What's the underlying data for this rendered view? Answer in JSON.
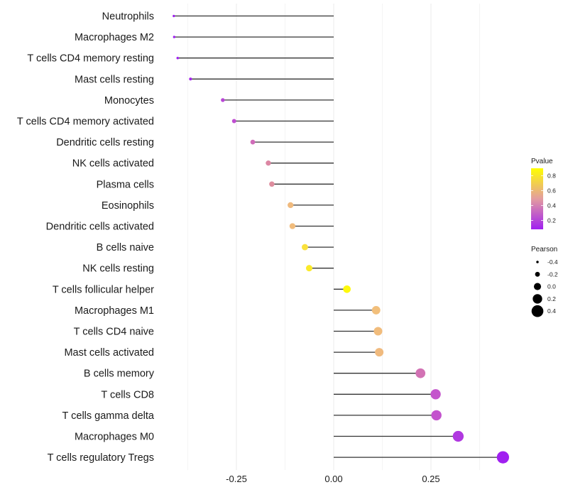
{
  "chart_data": {
    "type": "lollipop",
    "title": "",
    "xlabel": "",
    "ylabel": "",
    "xlim": [
      -0.49,
      0.455
    ],
    "x_major_ticks": [
      -0.25,
      0.0,
      0.25
    ],
    "x_tick_labels": [
      "-0.25",
      "0.00",
      "0.25"
    ],
    "x_minor_gridlines": [
      -0.375,
      -0.125,
      0.125,
      0.375
    ],
    "grid": true,
    "baseline": 0,
    "categories": [
      "Neutrophils",
      "Macrophages M2",
      "T cells CD4 memory resting",
      "Mast cells resting",
      "Monocytes",
      "T cells CD4 memory activated",
      "Dendritic cells resting",
      "NK cells activated",
      "Plasma cells",
      "Eosinophils",
      "Dendritic cells activated",
      "B cells naive",
      "NK cells resting",
      "T cells follicular helper",
      "Macrophages M1",
      "T cells CD4 naive",
      "Mast cells activated",
      "B cells memory",
      "T cells CD8",
      "T cells gamma delta",
      "Macrophages M0",
      "T cells regulatory  Tregs"
    ],
    "series": [
      {
        "name": "Pearson",
        "values": [
          -0.411,
          -0.41,
          -0.401,
          -0.368,
          -0.285,
          -0.256,
          -0.208,
          -0.168,
          -0.159,
          -0.111,
          -0.106,
          -0.074,
          -0.063,
          0.034,
          0.109,
          0.114,
          0.117,
          0.223,
          0.262,
          0.264,
          0.32,
          0.435
        ]
      },
      {
        "name": "Pvalue",
        "values": [
          0.06,
          0.06,
          0.07,
          0.1,
          0.22,
          0.25,
          0.36,
          0.45,
          0.47,
          0.66,
          0.67,
          0.8,
          0.83,
          0.88,
          0.68,
          0.67,
          0.66,
          0.38,
          0.28,
          0.27,
          0.17,
          0.05
        ]
      }
    ],
    "legends": [
      {
        "title": "Pvalue",
        "type": "colorbar",
        "range": [
          0.08,
          0.9
        ],
        "ticks": [
          0.8,
          0.6,
          0.4,
          0.2
        ],
        "tick_labels": [
          "0.8",
          "0.6",
          "0.4",
          "0.2"
        ],
        "low_color": "#a020f0",
        "high_color": "#ffff00",
        "placement": "right"
      },
      {
        "title": "Pearson",
        "type": "size",
        "values": [
          -0.4,
          -0.2,
          0.0,
          0.2,
          0.4
        ],
        "labels": [
          "-0.4",
          "-0.2",
          "0.0",
          "0.2",
          "0.4"
        ],
        "placement": "right"
      }
    ]
  }
}
